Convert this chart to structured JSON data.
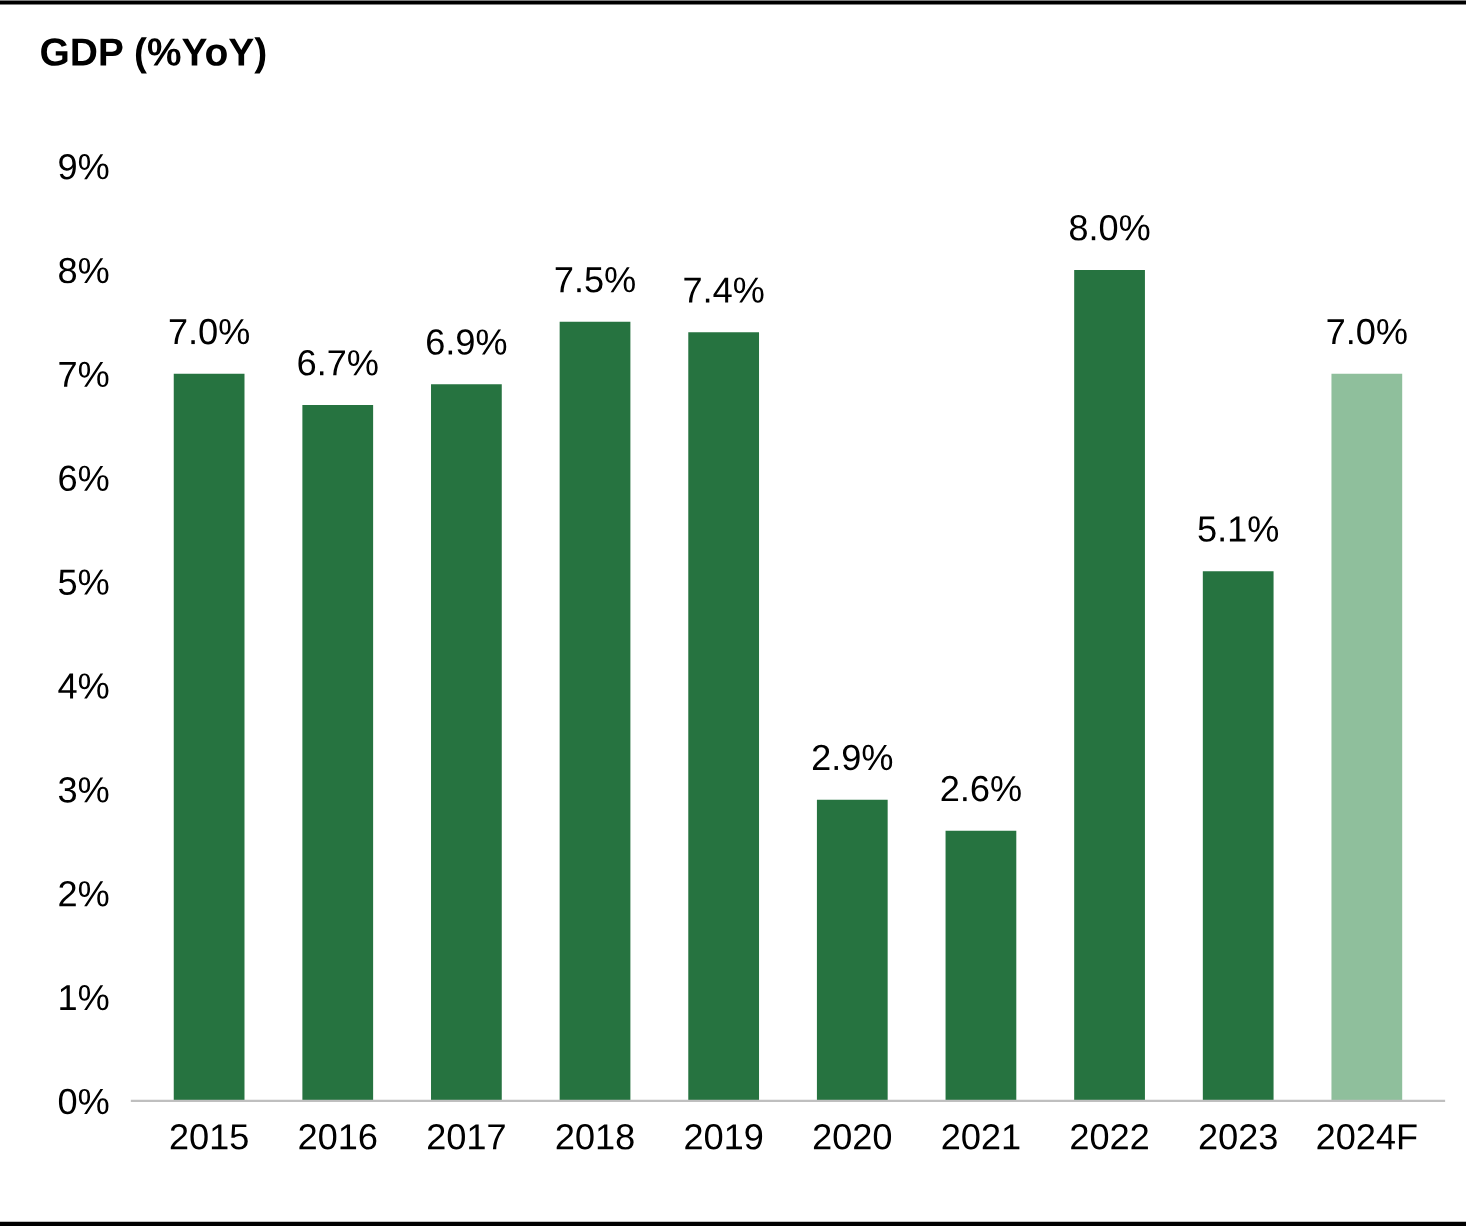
{
  "chart_data": {
    "type": "bar",
    "title": "GDP (%YoY)",
    "categories": [
      "2015",
      "2016",
      "2017",
      "2018",
      "2019",
      "2020",
      "2021",
      "2022",
      "2023",
      "2024F"
    ],
    "values": [
      7.0,
      6.7,
      6.9,
      7.5,
      7.4,
      2.9,
      2.6,
      8.0,
      5.1,
      7.0
    ],
    "value_labels": [
      "7.0%",
      "6.7%",
      "6.9%",
      "7.5%",
      "7.4%",
      "2.9%",
      "2.6%",
      "8.0%",
      "5.1%",
      "7.0%"
    ],
    "colors": [
      "#267340",
      "#267340",
      "#267340",
      "#267340",
      "#267340",
      "#267340",
      "#267340",
      "#267340",
      "#267340",
      "#8fbf9c"
    ],
    "ylim": [
      0,
      9
    ],
    "yticks": [
      {
        "value": 0,
        "label": "0%"
      },
      {
        "value": 1,
        "label": "1%"
      },
      {
        "value": 2,
        "label": "2%"
      },
      {
        "value": 3,
        "label": "3%"
      },
      {
        "value": 4,
        "label": "4%"
      },
      {
        "value": 5,
        "label": "5%"
      },
      {
        "value": 6,
        "label": "6%"
      },
      {
        "value": 7,
        "label": "7%"
      },
      {
        "value": 8,
        "label": "8%"
      },
      {
        "value": 9,
        "label": "9%"
      }
    ],
    "grid": false
  }
}
